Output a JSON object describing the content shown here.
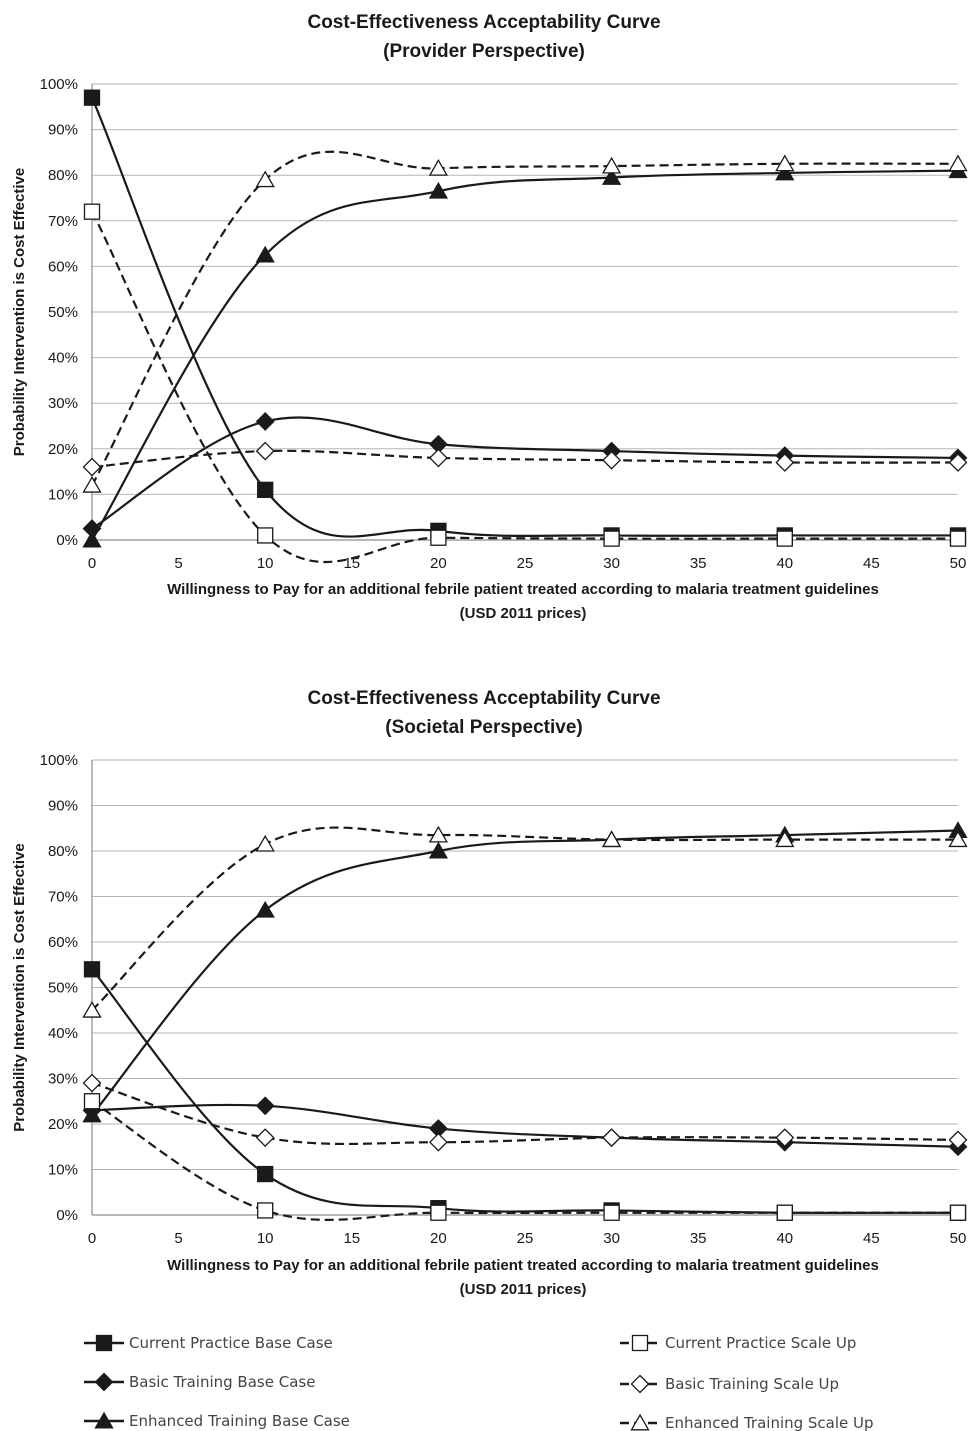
{
  "chart_data": [
    {
      "type": "line",
      "title": "Cost-Effectiveness Acceptability Curve",
      "subtitle": "(Provider Perspective)",
      "xlabel": "Willingness to Pay for an additional febrile patient treated according to malaria treatment guidelines",
      "xlabel2": "(USD 2011 prices)",
      "ylabel": "Probability Intervention is Cost Effective",
      "xlim": [
        0,
        50
      ],
      "ylim": [
        0,
        100
      ],
      "x_ticks": [
        "0",
        "5",
        "10",
        "15",
        "20",
        "25",
        "30",
        "35",
        "40",
        "45",
        "50"
      ],
      "y_ticks": [
        "0%",
        "10%",
        "20%",
        "30%",
        "40%",
        "50%",
        "60%",
        "70%",
        "80%",
        "90%",
        "100%"
      ],
      "grid": true,
      "x": [
        0,
        10,
        20,
        30,
        40,
        50
      ],
      "series": [
        {
          "name": "Current Practice Base Case",
          "values": [
            97,
            11,
            2,
            1,
            1,
            1
          ]
        },
        {
          "name": "Basic Training Base Case",
          "values": [
            2.5,
            26,
            21,
            19.5,
            18.5,
            18
          ]
        },
        {
          "name": "Enhanced Training Base Case",
          "values": [
            0,
            62.5,
            76.5,
            79.5,
            80.5,
            81
          ]
        },
        {
          "name": "Current Practice Scale Up",
          "values": [
            72,
            1,
            0.5,
            0.3,
            0.3,
            0.3
          ]
        },
        {
          "name": "Basic Training Scale Up",
          "values": [
            16,
            19.5,
            18,
            17.5,
            17,
            17
          ]
        },
        {
          "name": "Enhanced Training Scale Up",
          "values": [
            12,
            79,
            81.5,
            82,
            82.5,
            82.5
          ]
        }
      ]
    },
    {
      "type": "line",
      "title": "Cost-Effectiveness Acceptability Curve",
      "subtitle": "(Societal Perspective)",
      "xlabel": "Willingness to Pay for an additional febrile patient treated according to malaria treatment guidelines",
      "xlabel2": "(USD 2011 prices)",
      "ylabel": "Probability Intervention is Cost Effective",
      "xlim": [
        0,
        50
      ],
      "ylim": [
        0,
        100
      ],
      "x_ticks": [
        "0",
        "5",
        "10",
        "15",
        "20",
        "25",
        "30",
        "35",
        "40",
        "45",
        "50"
      ],
      "y_ticks": [
        "0%",
        "10%",
        "20%",
        "30%",
        "40%",
        "50%",
        "60%",
        "70%",
        "80%",
        "90%",
        "100%"
      ],
      "grid": true,
      "x": [
        0,
        10,
        20,
        30,
        40,
        50
      ],
      "series": [
        {
          "name": "Current Practice Base Case",
          "values": [
            54,
            9,
            1.5,
            1,
            0.5,
            0.5
          ]
        },
        {
          "name": "Basic Training Base Case",
          "values": [
            23,
            24,
            19,
            17,
            16,
            15
          ]
        },
        {
          "name": "Enhanced Training Base Case",
          "values": [
            22,
            67,
            80,
            82.5,
            83.5,
            84.5
          ]
        },
        {
          "name": "Current Practice Scale Up",
          "values": [
            25,
            1,
            0.5,
            0.5,
            0.5,
            0.5
          ]
        },
        {
          "name": "Basic Training Scale Up",
          "values": [
            29,
            17,
            16,
            17,
            17,
            16.5
          ]
        },
        {
          "name": "Enhanced Training Scale Up",
          "values": [
            45,
            81.5,
            83.5,
            82.5,
            82.5,
            82.5
          ]
        }
      ]
    }
  ],
  "legend": [
    {
      "label": "Current Practice Base Case",
      "dashed": false,
      "marker": "square",
      "filled": true
    },
    {
      "label": "Basic Training Base Case",
      "dashed": false,
      "marker": "diamond",
      "filled": true
    },
    {
      "label": "Enhanced Training Base Case",
      "dashed": false,
      "marker": "triangle",
      "filled": true
    },
    {
      "label": "Current Practice Scale Up",
      "dashed": true,
      "marker": "square",
      "filled": false
    },
    {
      "label": "Basic Training Scale Up",
      "dashed": true,
      "marker": "diamond",
      "filled": false
    },
    {
      "label": "Enhanced Training Scale Up",
      "dashed": true,
      "marker": "triangle",
      "filled": false
    }
  ],
  "style": {
    "line_color": "#1a1a1a",
    "grid_color": "#b5b5b5",
    "axis_color": "#8c8c8c"
  }
}
